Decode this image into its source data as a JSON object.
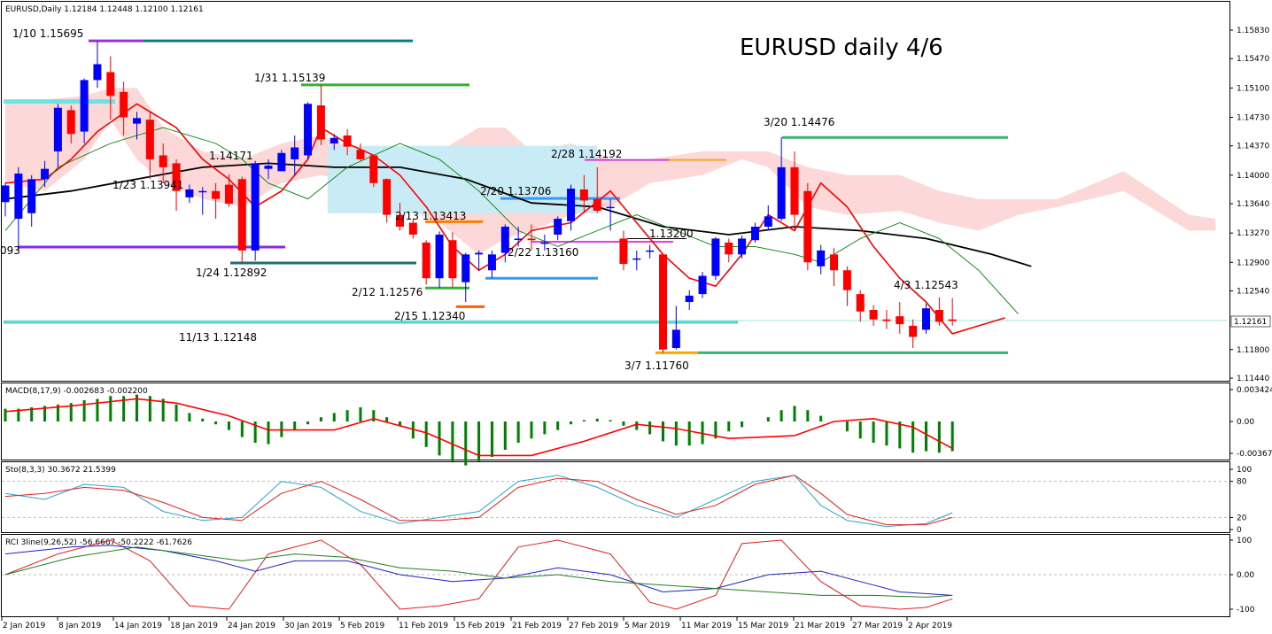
{
  "chart_data": {
    "type": "candlestick",
    "title": "EURUSD daily 4/6",
    "info": "EURUSD,Daily  1.12184 1.12448 1.12100 1.12161",
    "current_price": "1.12161",
    "price_axis_labels": [
      "1.15830",
      "1.15470",
      "1.15100",
      "1.14730",
      "1.14370",
      "1.14000",
      "1.13640",
      "1.13270",
      "1.12900",
      "1.12540",
      "1.11800",
      "1.11440"
    ],
    "date_labels": [
      "2 Jan 2019",
      "8 Jan 2019",
      "14 Jan 2019",
      "18 Jan 2019",
      "24 Jan 2019",
      "30 Jan 2019",
      "5 Feb 2019",
      "11 Feb 2019",
      "15 Feb 2019",
      "21 Feb 2019",
      "27 Feb 2019",
      "5 Mar 2019",
      "11 Mar 2019",
      "15 Mar 2019",
      "21 Mar 2019",
      "27 Mar 2019",
      "2 Apr 2019"
    ],
    "annotations": [
      "1/10 1.15695",
      "1/31 1.15139",
      "3/20 1.14476",
      "2/28 1.14192",
      "1.14171",
      "1/23 1.13941",
      "2/20 1.13706",
      "2/13 1.13413",
      "1.13200",
      "2/22 1.13160",
      "093",
      "1/24 1.12892",
      "2/12 1.12576",
      "4/3 1.12543",
      "2/15 1.12340",
      "11/13 1.12148",
      "3/7 1.11760"
    ],
    "candles": [
      [
        1.1366,
        1.1387,
        1.1348,
        1.139
      ],
      [
        1.1345,
        1.1402,
        1.1305,
        1.141
      ],
      [
        1.1352,
        1.1395,
        1.1335,
        1.14
      ],
      [
        1.1395,
        1.1408,
        1.1385,
        1.1418
      ],
      [
        1.143,
        1.1485,
        1.141,
        1.149
      ],
      [
        1.1482,
        1.1452,
        1.144,
        1.1488
      ],
      [
        1.1455,
        1.152,
        1.144,
        1.1522
      ],
      [
        1.152,
        1.154,
        1.151,
        1.1569
      ],
      [
        1.153,
        1.15,
        1.147,
        1.155
      ],
      [
        1.1505,
        1.1473,
        1.145,
        1.1518
      ],
      [
        1.1465,
        1.1472,
        1.1445,
        1.148
      ],
      [
        1.147,
        1.142,
        1.1395,
        1.148
      ],
      [
        1.1425,
        1.141,
        1.139,
        1.144
      ],
      [
        1.1415,
        1.138,
        1.1355,
        1.142
      ],
      [
        1.1372,
        1.1382,
        1.1365,
        1.1388
      ],
      [
        1.138,
        1.138,
        1.135,
        1.1385
      ],
      [
        1.138,
        1.137,
        1.1345,
        1.139
      ],
      [
        1.1388,
        1.1364,
        1.136,
        1.1401
      ],
      [
        1.1395,
        1.1305,
        1.1289,
        1.1398
      ],
      [
        1.1305,
        1.1415,
        1.1292,
        1.1418
      ],
      [
        1.1408,
        1.1412,
        1.1395,
        1.142
      ],
      [
        1.1405,
        1.1428,
        1.1405,
        1.1432
      ],
      [
        1.142,
        1.1435,
        1.14,
        1.145
      ],
      [
        1.1425,
        1.149,
        1.142,
        1.1492
      ],
      [
        1.1488,
        1.1445,
        1.1438,
        1.1514
      ],
      [
        1.144,
        1.1447,
        1.1432,
        1.1452
      ],
      [
        1.145,
        1.1436,
        1.1425,
        1.1458
      ],
      [
        1.1432,
        1.142,
        1.1418,
        1.144
      ],
      [
        1.1425,
        1.139,
        1.1385,
        1.1426
      ],
      [
        1.1395,
        1.135,
        1.134,
        1.1396
      ],
      [
        1.135,
        1.1335,
        1.133,
        1.1365
      ],
      [
        1.134,
        1.1325,
        1.132,
        1.1345
      ],
      [
        1.1315,
        1.127,
        1.1262,
        1.1318
      ],
      [
        1.127,
        1.1325,
        1.1258,
        1.1329
      ],
      [
        1.1318,
        1.127,
        1.1258,
        1.1328
      ],
      [
        1.1265,
        1.13,
        1.124,
        1.1302
      ],
      [
        1.13,
        1.1302,
        1.128,
        1.1305
      ],
      [
        1.128,
        1.13,
        1.127,
        1.1305
      ],
      [
        1.1302,
        1.1335,
        1.129,
        1.1338
      ],
      [
        1.132,
        1.132,
        1.131,
        1.1335
      ],
      [
        1.132,
        1.1318,
        1.1305,
        1.1338
      ],
      [
        1.1315,
        1.1315,
        1.1305,
        1.1325
      ],
      [
        1.1325,
        1.1345,
        1.1318,
        1.1348
      ],
      [
        1.1342,
        1.1383,
        1.133,
        1.1388
      ],
      [
        1.1382,
        1.1368,
        1.1352,
        1.14
      ],
      [
        1.137,
        1.1355,
        1.1352,
        1.141
      ],
      [
        1.136,
        1.136,
        1.133,
        1.137
      ],
      [
        1.132,
        1.1288,
        1.128,
        1.133
      ],
      [
        1.1295,
        1.1295,
        1.128,
        1.1305
      ],
      [
        1.1305,
        1.1305,
        1.1295,
        1.1312
      ],
      [
        1.13,
        1.118,
        1.1176,
        1.13
      ],
      [
        1.1182,
        1.1205,
        1.118,
        1.1235
      ],
      [
        1.124,
        1.1248,
        1.123,
        1.1255
      ],
      [
        1.125,
        1.1273,
        1.1245,
        1.1278
      ],
      [
        1.1273,
        1.132,
        1.1268,
        1.1322
      ],
      [
        1.1315,
        1.13,
        1.129,
        1.132
      ],
      [
        1.13,
        1.132,
        1.1295,
        1.1324
      ],
      [
        1.1318,
        1.1335,
        1.1315,
        1.134
      ],
      [
        1.1335,
        1.1348,
        1.133,
        1.1362
      ],
      [
        1.1345,
        1.141,
        1.1342,
        1.1448
      ],
      [
        1.141,
        1.135,
        1.133,
        1.143
      ],
      [
        1.138,
        1.129,
        1.128,
        1.139
      ],
      [
        1.1285,
        1.1305,
        1.1275,
        1.1312
      ],
      [
        1.13,
        1.128,
        1.126,
        1.1308
      ],
      [
        1.128,
        1.1255,
        1.1235,
        1.1285
      ],
      [
        1.125,
        1.1228,
        1.1215,
        1.1255
      ],
      [
        1.123,
        1.1218,
        1.121,
        1.1236
      ],
      [
        1.1218,
        1.1216,
        1.1206,
        1.123
      ],
      [
        1.1222,
        1.1212,
        1.12,
        1.124
      ],
      [
        1.121,
        1.1196,
        1.1182,
        1.1218
      ],
      [
        1.1205,
        1.1232,
        1.12,
        1.1238
      ],
      [
        1.123,
        1.1215,
        1.121,
        1.1246
      ],
      [
        1.1218,
        1.1216,
        1.121,
        1.1245
      ]
    ],
    "macd_label": "MACD(8,17,9) -0.002683 -0.002200",
    "macd_axis_labels": [
      "0.003424",
      "0.00",
      "-0.00367"
    ],
    "sto_label": "Sto(8,3,3) 30.3672 21.5399",
    "sto_axis_labels": [
      "100",
      "80",
      "20",
      "0"
    ],
    "rci_label": "RCI 3line(9,26,52) -56.6667 -50.2222 -61.7626",
    "rci_axis_labels": [
      "100",
      "0.00",
      "-100"
    ],
    "colors": {
      "bull": "#0000ff",
      "bear": "#ff0000",
      "macd_hist": "#008000",
      "signal": "#ff0000",
      "cloud": "#fdd8d8",
      "cloud_bull": "#c9ebf6"
    }
  }
}
